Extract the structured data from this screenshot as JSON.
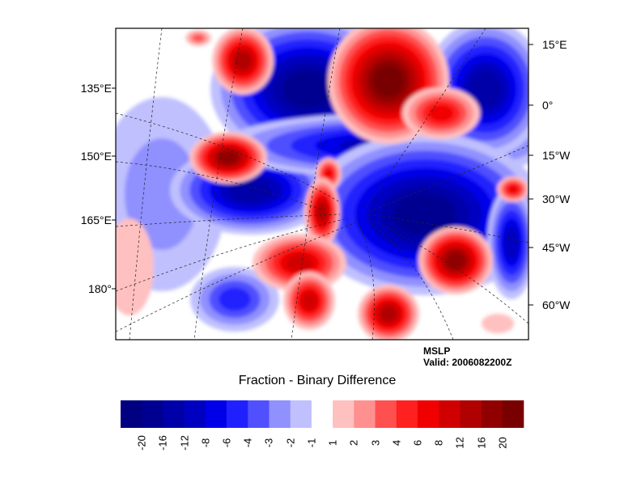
{
  "chart_data": {
    "type": "heatmap",
    "title": "Fraction - Binary Difference",
    "variable": "MSLP",
    "valid": "Valid: 2006082200Z",
    "left_lon_labels": [
      "135°E",
      "150°E",
      "165°E",
      "180°"
    ],
    "right_lon_labels": [
      "15°E",
      "0°",
      "15°W",
      "30°W",
      "45°W",
      "60°W"
    ],
    "colorbar": {
      "levels": [
        "-20",
        "-16",
        "-12",
        "-8",
        "-6",
        "-4",
        "-3",
        "-2",
        "-1",
        "1",
        "2",
        "3",
        "4",
        "6",
        "8",
        "12",
        "16",
        "20"
      ],
      "colors": [
        "#000080",
        "#000090",
        "#0000a8",
        "#0000c0",
        "#0000e8",
        "#2020ff",
        "#5050ff",
        "#9090ff",
        "#c0c0ff",
        "#ffffff",
        "#ffc0c0",
        "#ff9090",
        "#ff5050",
        "#ff2020",
        "#f00000",
        "#d00000",
        "#b00000",
        "#900000",
        "#780000"
      ]
    },
    "grid": "dashed lat/lon lines, coastlines"
  }
}
